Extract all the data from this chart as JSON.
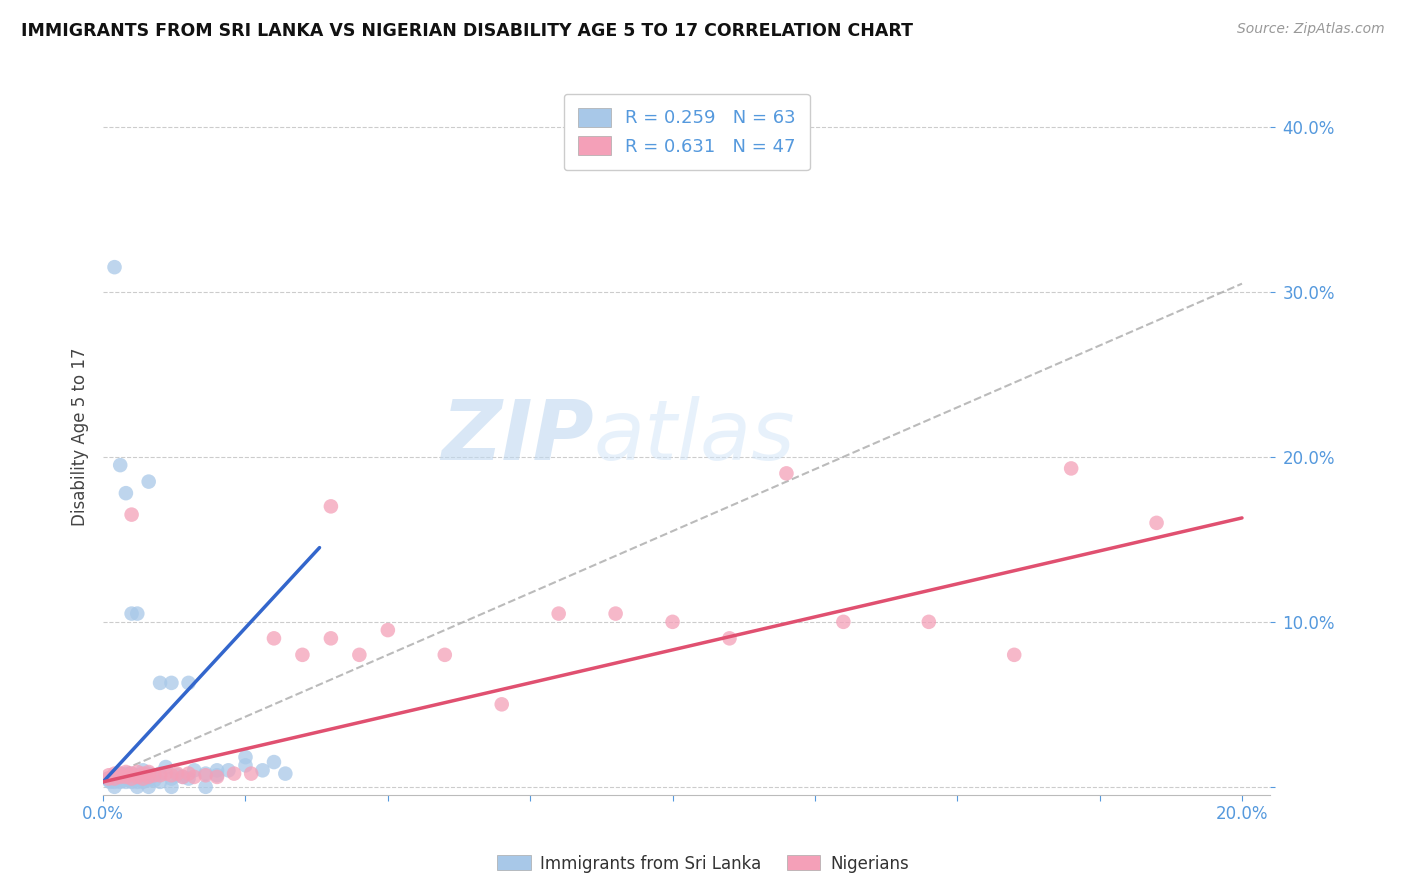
{
  "title": "IMMIGRANTS FROM SRI LANKA VS NIGERIAN DISABILITY AGE 5 TO 17 CORRELATION CHART",
  "source": "Source: ZipAtlas.com",
  "ylabel": "Disability Age 5 to 17",
  "xlim": [
    0,
    0.205
  ],
  "ylim": [
    -0.005,
    0.43
  ],
  "sri_lanka_R": 0.259,
  "sri_lanka_N": 63,
  "nigerian_R": 0.631,
  "nigerian_N": 47,
  "sri_lanka_color": "#a8c8e8",
  "nigerian_color": "#f4a0b8",
  "sri_lanka_line_color": "#3366cc",
  "nigerian_line_color": "#e05070",
  "gray_dashed_color": "#aaaaaa",
  "legend_label_sri": "Immigrants from Sri Lanka",
  "legend_label_nig": "Nigerians",
  "watermark_zip": "ZIP",
  "watermark_atlas": "atlas",
  "background_color": "#ffffff",
  "sri_lanka_x": [
    0.0008,
    0.001,
    0.0012,
    0.0015,
    0.0018,
    0.002,
    0.002,
    0.0022,
    0.0025,
    0.003,
    0.003,
    0.003,
    0.0033,
    0.0035,
    0.004,
    0.004,
    0.004,
    0.0045,
    0.005,
    0.005,
    0.005,
    0.0055,
    0.006,
    0.006,
    0.006,
    0.007,
    0.007,
    0.007,
    0.008,
    0.008,
    0.009,
    0.009,
    0.01,
    0.01,
    0.011,
    0.012,
    0.013,
    0.014,
    0.015,
    0.016,
    0.018,
    0.02,
    0.022,
    0.025,
    0.028,
    0.03,
    0.032,
    0.002,
    0.003,
    0.004,
    0.005,
    0.006,
    0.008,
    0.01,
    0.012,
    0.015,
    0.02,
    0.025,
    0.002,
    0.006,
    0.008,
    0.012,
    0.018
  ],
  "sri_lanka_y": [
    0.005,
    0.004,
    0.003,
    0.005,
    0.006,
    0.003,
    0.006,
    0.004,
    0.005,
    0.003,
    0.006,
    0.008,
    0.004,
    0.005,
    0.003,
    0.006,
    0.008,
    0.004,
    0.003,
    0.006,
    0.008,
    0.004,
    0.003,
    0.006,
    0.007,
    0.003,
    0.006,
    0.01,
    0.004,
    0.008,
    0.004,
    0.007,
    0.003,
    0.008,
    0.012,
    0.005,
    0.007,
    0.006,
    0.005,
    0.01,
    0.008,
    0.007,
    0.01,
    0.013,
    0.01,
    0.015,
    0.008,
    0.315,
    0.195,
    0.178,
    0.105,
    0.105,
    0.185,
    0.063,
    0.063,
    0.063,
    0.01,
    0.018,
    0.0,
    0.0,
    0.0,
    0.0,
    0.0
  ],
  "nigerian_x": [
    0.001,
    0.001,
    0.002,
    0.002,
    0.003,
    0.003,
    0.004,
    0.004,
    0.005,
    0.005,
    0.006,
    0.006,
    0.007,
    0.007,
    0.008,
    0.008,
    0.009,
    0.01,
    0.011,
    0.012,
    0.013,
    0.014,
    0.015,
    0.016,
    0.018,
    0.02,
    0.023,
    0.026,
    0.03,
    0.035,
    0.04,
    0.045,
    0.05,
    0.06,
    0.07,
    0.08,
    0.09,
    0.1,
    0.11,
    0.12,
    0.13,
    0.145,
    0.16,
    0.17,
    0.185,
    0.005,
    0.04
  ],
  "nigerian_y": [
    0.005,
    0.007,
    0.005,
    0.008,
    0.006,
    0.008,
    0.006,
    0.009,
    0.005,
    0.008,
    0.006,
    0.009,
    0.005,
    0.008,
    0.006,
    0.009,
    0.007,
    0.007,
    0.008,
    0.007,
    0.008,
    0.006,
    0.008,
    0.006,
    0.007,
    0.006,
    0.008,
    0.008,
    0.09,
    0.08,
    0.09,
    0.08,
    0.095,
    0.08,
    0.05,
    0.105,
    0.105,
    0.1,
    0.09,
    0.19,
    0.1,
    0.1,
    0.08,
    0.193,
    0.16,
    0.165,
    0.17
  ],
  "sri_lanka_line_x": [
    0.0,
    0.038
  ],
  "sri_lanka_line_y": [
    0.003,
    0.145
  ],
  "nigerian_line_x": [
    0.0,
    0.2
  ],
  "nigerian_line_y": [
    0.003,
    0.163
  ],
  "gray_line_x": [
    0.0,
    0.2
  ],
  "gray_line_y": [
    0.005,
    0.305
  ]
}
